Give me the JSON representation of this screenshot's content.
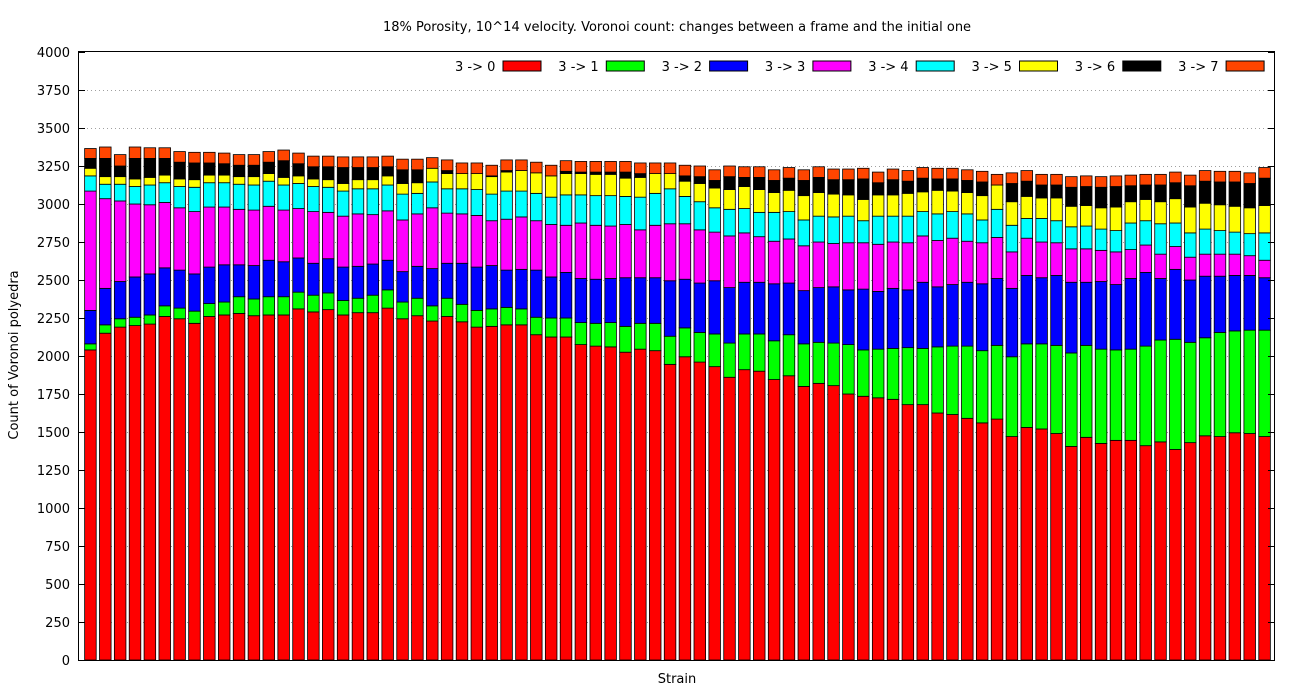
{
  "chart_data": {
    "type": "bar",
    "stacked": true,
    "title": "18% Porosity, 10^14 velocity. Voronoi count: changes between a frame and the initial one",
    "xlabel": "Strain",
    "ylabel": "Count of Voronoi polyedra",
    "ylim": [
      0,
      4000
    ],
    "yticks": [
      "0",
      "250",
      "500",
      "750",
      "1000",
      "1250",
      "1500",
      "1750",
      "2000",
      "2250",
      "2500",
      "2750",
      "3000",
      "3250",
      "3500",
      "3750",
      "4000"
    ],
    "grid": "dotted horizontal lines above the bars",
    "legend_placement": "top-right, horizontal",
    "colors": [
      "#ff0000",
      "#00ff00",
      "#0000ff",
      "#ff00ff",
      "#00ffff",
      "#ffff00",
      "#000000",
      "#ff4500"
    ],
    "n_bars": 80,
    "total_per_bar": 3300,
    "series": [
      {
        "name": "3 -> 0",
        "values": [
          2040,
          2150,
          2190,
          2200,
          2210,
          2260,
          2245,
          2215,
          2260,
          2270,
          2280,
          2265,
          2270,
          2270,
          2310,
          2290,
          2305,
          2270,
          2285,
          2285,
          2315,
          2245,
          2265,
          2230,
          2260,
          2225,
          2190,
          2195,
          2205,
          2205,
          2140,
          2125,
          2125,
          2075,
          2065,
          2060,
          2025,
          2045,
          2035,
          1945,
          1995,
          1960,
          1930,
          1860,
          1910,
          1900,
          1845,
          1870,
          1800,
          1820,
          1805,
          1750,
          1735,
          1725,
          1715,
          1680,
          1680,
          1625,
          1615,
          1590,
          1560,
          1585,
          1470,
          1530,
          1520,
          1490,
          1405,
          1465,
          1425,
          1445,
          1445,
          1410,
          1435,
          1385,
          1430,
          1475,
          1470,
          1495,
          1490,
          1470
        ]
      },
      {
        "name": "3 -> 1",
        "values": [
          40,
          55,
          55,
          55,
          60,
          70,
          70,
          80,
          85,
          85,
          110,
          110,
          120,
          120,
          110,
          110,
          110,
          95,
          95,
          115,
          120,
          110,
          115,
          100,
          120,
          115,
          110,
          115,
          115,
          105,
          115,
          125,
          125,
          145,
          150,
          160,
          170,
          170,
          180,
          185,
          190,
          195,
          215,
          225,
          235,
          245,
          255,
          270,
          280,
          270,
          280,
          325,
          305,
          320,
          335,
          375,
          370,
          435,
          450,
          475,
          475,
          485,
          525,
          550,
          560,
          580,
          615,
          605,
          620,
          595,
          600,
          655,
          670,
          725,
          660,
          645,
          685,
          670,
          680,
          700
        ]
      },
      {
        "name": "3 -> 2",
        "values": [
          220,
          240,
          245,
          265,
          270,
          250,
          250,
          245,
          240,
          245,
          210,
          220,
          240,
          230,
          225,
          210,
          225,
          220,
          210,
          205,
          195,
          200,
          210,
          245,
          230,
          270,
          285,
          285,
          245,
          260,
          310,
          270,
          300,
          290,
          290,
          290,
          320,
          300,
          300,
          365,
          320,
          325,
          350,
          365,
          340,
          340,
          375,
          340,
          350,
          360,
          370,
          360,
          400,
          380,
          395,
          380,
          435,
          395,
          405,
          420,
          440,
          440,
          450,
          450,
          435,
          460,
          465,
          415,
          445,
          430,
          465,
          485,
          405,
          460,
          410,
          405,
          370,
          365,
          360,
          345
        ]
      },
      {
        "name": "3 -> 3",
        "values": [
          785,
          590,
          530,
          480,
          455,
          430,
          410,
          410,
          395,
          380,
          365,
          365,
          355,
          340,
          325,
          340,
          305,
          335,
          345,
          325,
          325,
          340,
          345,
          400,
          330,
          325,
          340,
          295,
          335,
          345,
          325,
          345,
          310,
          365,
          355,
          345,
          350,
          315,
          345,
          375,
          365,
          350,
          320,
          340,
          325,
          300,
          280,
          290,
          295,
          300,
          285,
          310,
          305,
          310,
          305,
          310,
          305,
          305,
          305,
          270,
          270,
          270,
          240,
          245,
          235,
          215,
          220,
          220,
          205,
          215,
          190,
          180,
          160,
          150,
          150,
          145,
          145,
          140,
          130,
          115
        ]
      },
      {
        "name": "3 -> 4",
        "values": [
          100,
          95,
          110,
          115,
          130,
          130,
          140,
          160,
          160,
          160,
          165,
          165,
          165,
          165,
          165,
          165,
          165,
          165,
          165,
          170,
          170,
          170,
          135,
          170,
          160,
          165,
          170,
          175,
          185,
          170,
          180,
          180,
          200,
          185,
          195,
          200,
          185,
          215,
          210,
          230,
          180,
          185,
          160,
          175,
          160,
          160,
          190,
          180,
          170,
          170,
          175,
          175,
          145,
          185,
          170,
          175,
          160,
          175,
          175,
          180,
          150,
          185,
          175,
          130,
          155,
          145,
          145,
          150,
          140,
          140,
          175,
          160,
          200,
          155,
          160,
          165,
          155,
          145,
          145,
          180
        ]
      },
      {
        "name": "3 -> 5",
        "values": [
          50,
          50,
          50,
          50,
          50,
          50,
          50,
          50,
          50,
          50,
          50,
          55,
          50,
          50,
          50,
          50,
          50,
          50,
          60,
          60,
          60,
          70,
          70,
          90,
          100,
          100,
          105,
          115,
          125,
          135,
          135,
          140,
          140,
          140,
          140,
          140,
          120,
          130,
          130,
          100,
          100,
          120,
          130,
          130,
          145,
          150,
          130,
          140,
          160,
          155,
          150,
          140,
          140,
          140,
          140,
          150,
          130,
          155,
          135,
          140,
          160,
          160,
          155,
          145,
          135,
          150,
          135,
          135,
          140,
          155,
          140,
          140,
          145,
          160,
          170,
          170,
          170,
          170,
          170,
          180
        ]
      },
      {
        "name": "3 -> 6",
        "values": [
          0,
          0,
          0,
          0,
          0,
          0,
          25,
          30,
          30,
          35,
          45,
          55,
          55,
          45,
          45,
          55,
          55,
          60,
          60,
          60,
          55,
          75,
          75,
          65,
          80,
          100,
          100,
          115,
          80,
          80,
          95,
          115,
          85,
          90,
          90,
          90,
          90,
          100,
          100,
          100,
          115,
          120,
          145,
          120,
          125,
          125,
          135,
          130,
          125,
          125,
          140,
          140,
          135,
          150,
          140,
          150,
          130,
          135,
          135,
          165,
          165,
          175,
          165,
          170,
          175,
          175,
          190,
          185,
          190,
          185,
          180,
          175,
          175,
          160,
          175,
          150,
          150,
          145,
          145,
          145
        ]
      },
      {
        "name": "3 -> 7",
        "values": [
          0,
          0,
          0,
          0,
          0,
          0,
          0,
          0,
          0,
          0,
          0,
          0,
          0,
          0,
          0,
          0,
          0,
          0,
          0,
          0,
          0,
          0,
          0,
          0,
          0,
          0,
          0,
          0,
          0,
          0,
          0,
          0,
          0,
          0,
          0,
          0,
          0,
          0,
          0,
          0,
          0,
          0,
          0,
          0,
          0,
          0,
          0,
          0,
          0,
          0,
          0,
          0,
          0,
          0,
          0,
          0,
          0,
          0,
          0,
          0,
          0,
          0,
          0,
          0,
          0,
          0,
          0,
          0,
          0,
          0,
          0,
          0,
          0,
          0,
          0,
          0,
          0,
          0,
          0,
          0
        ]
      },
      {
        "name": "",
        "values": [
          65,
          120,
          70,
          135,
          125,
          110,
          110,
          110,
          80,
          75,
          75,
          75,
          75,
          110,
          80,
          80,
          85,
          105,
          80,
          80,
          60,
          90,
          85,
          0,
          20,
          0,
          0,
          5,
          10,
          0,
          0,
          0,
          15,
          10,
          15,
          15,
          40,
          25,
          0,
          0,
          35,
          45,
          50,
          85,
          60,
          80,
          80,
          80,
          100,
          100,
          95,
          100,
          135,
          80,
          100,
          80,
          90,
          75,
          80,
          80,
          90,
          0,
          120,
          100,
          85,
          85,
          125,
          125,
          135,
          135,
          105,
          95,
          110,
          105,
          140,
          145,
          150,
          160,
          160,
          180
        ]
      },
      {
        "name": "",
        "values": [
          0,
          0,
          0,
          0,
          0,
          0,
          0,
          0,
          0,
          0,
          0,
          0,
          0,
          0,
          0,
          0,
          0,
          0,
          0,
          0,
          0,
          0,
          0,
          0,
          0,
          0,
          0,
          0,
          0,
          0,
          0,
          0,
          0,
          0,
          0,
          0,
          0,
          0,
          0,
          0,
          0,
          0,
          0,
          0,
          0,
          0,
          0,
          0,
          0,
          0,
          0,
          0,
          0,
          0,
          0,
          0,
          0,
          0,
          0,
          0,
          0,
          0,
          0,
          0,
          0,
          0,
          0,
          0,
          0,
          0,
          0,
          0,
          0,
          0,
          0,
          0,
          0,
          0,
          0,
          0
        ]
      }
    ],
    "top_band": {
      "name": "",
      "values": [
        65,
        75,
        75,
        75,
        70,
        70,
        70,
        70,
        70,
        70,
        70,
        70,
        70,
        70,
        70,
        70,
        70,
        70,
        70,
        70,
        70,
        70,
        70,
        70,
        70,
        70,
        70,
        70,
        70,
        70,
        70,
        70,
        70,
        70,
        70,
        70,
        70,
        70,
        70,
        70,
        70,
        70,
        70,
        70,
        70,
        70,
        70,
        70,
        70,
        70,
        70,
        70,
        70,
        70,
        70,
        70,
        70,
        70,
        70,
        70,
        70,
        70,
        70,
        70,
        70,
        70,
        70,
        70,
        70,
        70,
        70,
        70,
        70,
        70,
        70,
        70,
        70,
        70,
        70,
        70
      ]
    },
    "legend": [
      {
        "label": "3 -> 0",
        "color": "#ff0000"
      },
      {
        "label": "3 -> 1",
        "color": "#00ff00"
      },
      {
        "label": "3 -> 2",
        "color": "#0000ff"
      },
      {
        "label": "3 -> 3",
        "color": "#ff00ff"
      },
      {
        "label": "3 -> 4",
        "color": "#00ffff"
      },
      {
        "label": "3 -> 5",
        "color": "#ffff00"
      },
      {
        "label": "3 -> 6",
        "color": "#000000"
      },
      {
        "label": "3 -> 7",
        "color": "#ff4500"
      }
    ]
  }
}
